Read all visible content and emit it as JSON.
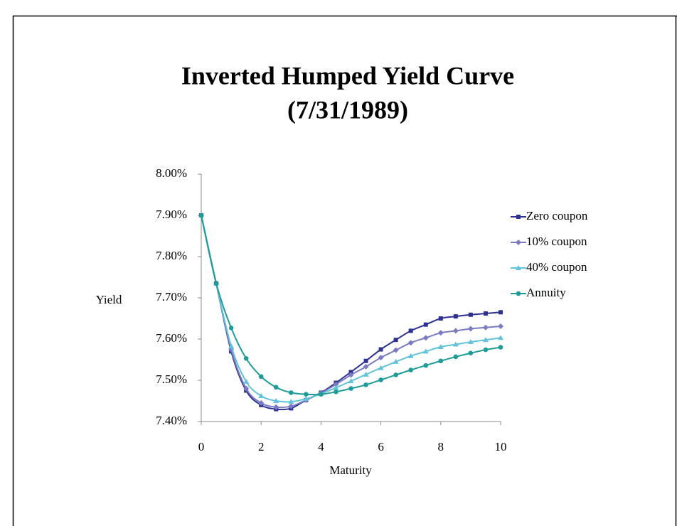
{
  "chart_data": {
    "type": "line",
    "title": [
      "Inverted Humped Yield Curve",
      "(7/31/1989)"
    ],
    "x_label": "Maturity",
    "y_label": "Yield",
    "x": [
      0,
      0.5,
      1,
      1.5,
      2,
      2.5,
      3,
      3.5,
      4,
      4.5,
      5,
      5.5,
      6,
      6.5,
      7,
      7.5,
      8,
      8.5,
      9,
      9.5,
      10
    ],
    "series": [
      {
        "name": "Zero coupon",
        "color": "#2e3192",
        "marker": "square",
        "values": [
          7.9,
          7.735,
          7.57,
          7.475,
          7.44,
          7.43,
          7.432,
          7.452,
          7.47,
          7.494,
          7.52,
          7.547,
          7.575,
          7.598,
          7.62,
          7.635,
          7.65,
          7.655,
          7.659,
          7.662,
          7.665
        ]
      },
      {
        "name": "10% coupon",
        "color": "#7b7bc4",
        "marker": "diamond",
        "values": [
          7.9,
          7.735,
          7.575,
          7.48,
          7.445,
          7.435,
          7.437,
          7.452,
          7.469,
          7.49,
          7.513,
          7.533,
          7.555,
          7.573,
          7.591,
          7.603,
          7.615,
          7.62,
          7.625,
          7.628,
          7.631
        ]
      },
      {
        "name": "40% coupon",
        "color": "#62c3d9",
        "marker": "triangle",
        "values": [
          7.9,
          7.735,
          7.583,
          7.497,
          7.462,
          7.45,
          7.448,
          7.455,
          7.467,
          7.482,
          7.498,
          7.514,
          7.53,
          7.545,
          7.559,
          7.57,
          7.581,
          7.587,
          7.593,
          7.598,
          7.603
        ]
      },
      {
        "name": "Annuity",
        "color": "#1f9c98",
        "marker": "circle",
        "values": [
          7.9,
          7.735,
          7.627,
          7.553,
          7.509,
          7.483,
          7.47,
          7.466,
          7.466,
          7.472,
          7.48,
          7.489,
          7.501,
          7.513,
          7.525,
          7.536,
          7.547,
          7.557,
          7.566,
          7.574,
          7.58
        ]
      }
    ],
    "xlim": [
      0,
      10
    ],
    "xticks": [
      0,
      2,
      4,
      6,
      8,
      10
    ],
    "ylim": [
      7.4,
      8.0
    ],
    "yticks": [
      {
        "value": 7.4,
        "label": "7.40%"
      },
      {
        "value": 7.5,
        "label": "7.50%"
      },
      {
        "value": 7.6,
        "label": "7.60%"
      },
      {
        "value": 7.7,
        "label": "7.70%"
      },
      {
        "value": 7.8,
        "label": "7.80%"
      },
      {
        "value": 7.9,
        "label": "7.90%"
      },
      {
        "value": 8.0,
        "label": "8.00%"
      }
    ],
    "legend": "right"
  }
}
